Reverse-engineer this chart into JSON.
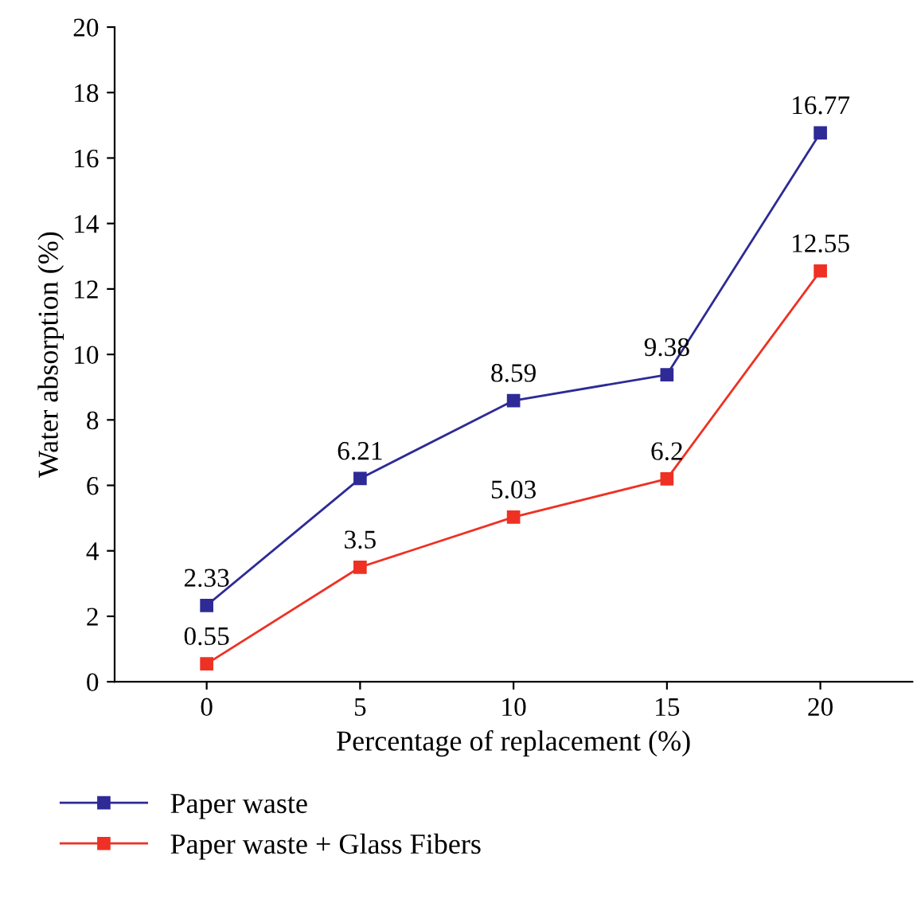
{
  "chart_data": {
    "type": "line",
    "xlabel": "Percentage of replacement (%)",
    "ylabel": "Water absorption (%)",
    "x": [
      0,
      5,
      10,
      15,
      20
    ],
    "series": [
      {
        "name": "Paper waste",
        "color": "#2e2a96",
        "values": [
          2.33,
          6.21,
          8.59,
          9.38,
          16.77
        ]
      },
      {
        "name": "Paper waste + Glass Fibers",
        "color": "#ee3124",
        "values": [
          0.55,
          3.5,
          5.03,
          6.2,
          12.55
        ]
      }
    ],
    "xlim": [
      -3,
      23
    ],
    "ylim": [
      0,
      20
    ],
    "xticks": [
      0,
      5,
      10,
      15,
      20
    ],
    "yticks": [
      0,
      2,
      4,
      6,
      8,
      10,
      12,
      14,
      16,
      18,
      20
    ],
    "data_labels": true,
    "marker": "square",
    "line_style": "solid",
    "grid": false,
    "legend": "bottom"
  }
}
